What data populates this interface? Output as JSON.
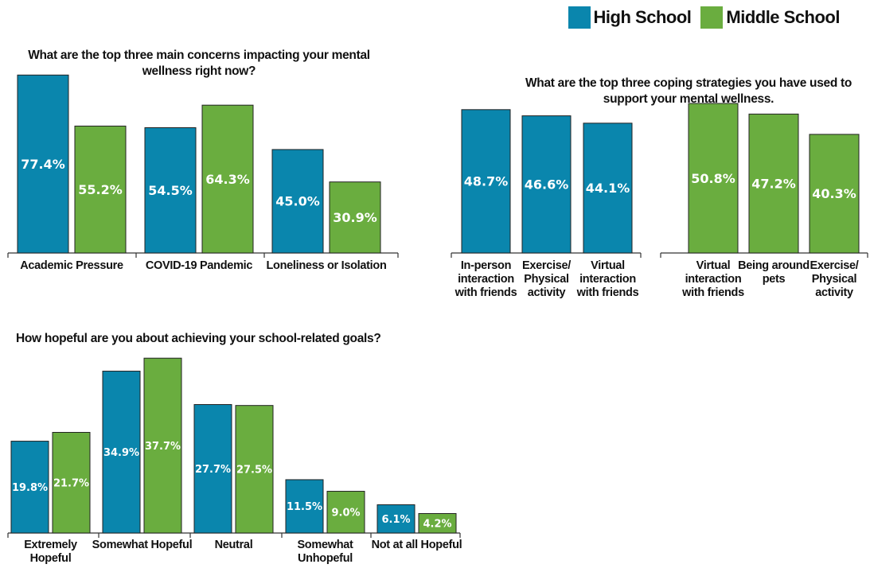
{
  "colors": {
    "high_school": "#0a86ad",
    "middle_school": "#6aad3f"
  },
  "legend": {
    "high_school": "High School",
    "middle_school": "Middle School"
  },
  "chart_data": [
    {
      "type": "bar",
      "title": "What are the top three main concerns impacting your mental wellness right now?",
      "categories": [
        "Academic Pressure",
        "COVID-19 Pandemic",
        "Loneliness or Isolation"
      ],
      "series": [
        {
          "name": "High School",
          "values": [
            77.4,
            54.5,
            45.0
          ],
          "labels": [
            "77.4%",
            "54.5%",
            "45.0%"
          ]
        },
        {
          "name": "Middle School",
          "values": [
            55.2,
            64.3,
            30.9
          ],
          "labels": [
            "55.2%",
            "64.3%",
            "30.9%"
          ]
        }
      ]
    },
    {
      "type": "bar",
      "title": "What are the top three coping strategies you have used to support your mental wellness.",
      "panels": [
        {
          "series": "High School",
          "categories": [
            "In-person interaction with friends",
            "Exercise/ Physical activity",
            "Virtual interaction with friends"
          ],
          "values": [
            48.7,
            46.6,
            44.1
          ],
          "labels": [
            "48.7%",
            "46.6%",
            "44.1%"
          ]
        },
        {
          "series": "Middle School",
          "categories": [
            "Virtual interaction with friends",
            "Being around pets",
            "Exercise/ Physical activity"
          ],
          "values": [
            50.8,
            47.2,
            40.3
          ],
          "labels": [
            "50.8%",
            "47.2%",
            "40.3%"
          ]
        }
      ]
    },
    {
      "type": "bar",
      "title": "How hopeful are you about achieving your school-related goals?",
      "categories": [
        "Extremely Hopeful",
        "Somewhat Hopeful",
        "Neutral",
        "Somewhat Unhopeful",
        "Not at all Hopeful"
      ],
      "series": [
        {
          "name": "High School",
          "values": [
            19.8,
            34.9,
            27.7,
            11.5,
            6.1
          ],
          "labels": [
            "19.8%",
            "34.9%",
            "27.7%",
            "11.5%",
            "6.1%"
          ]
        },
        {
          "name": "Middle School",
          "values": [
            21.7,
            37.7,
            27.5,
            9.0,
            4.2
          ],
          "labels": [
            "21.7%",
            "37.7%",
            "27.5%",
            "9.0%",
            "4.2%"
          ]
        }
      ]
    }
  ]
}
